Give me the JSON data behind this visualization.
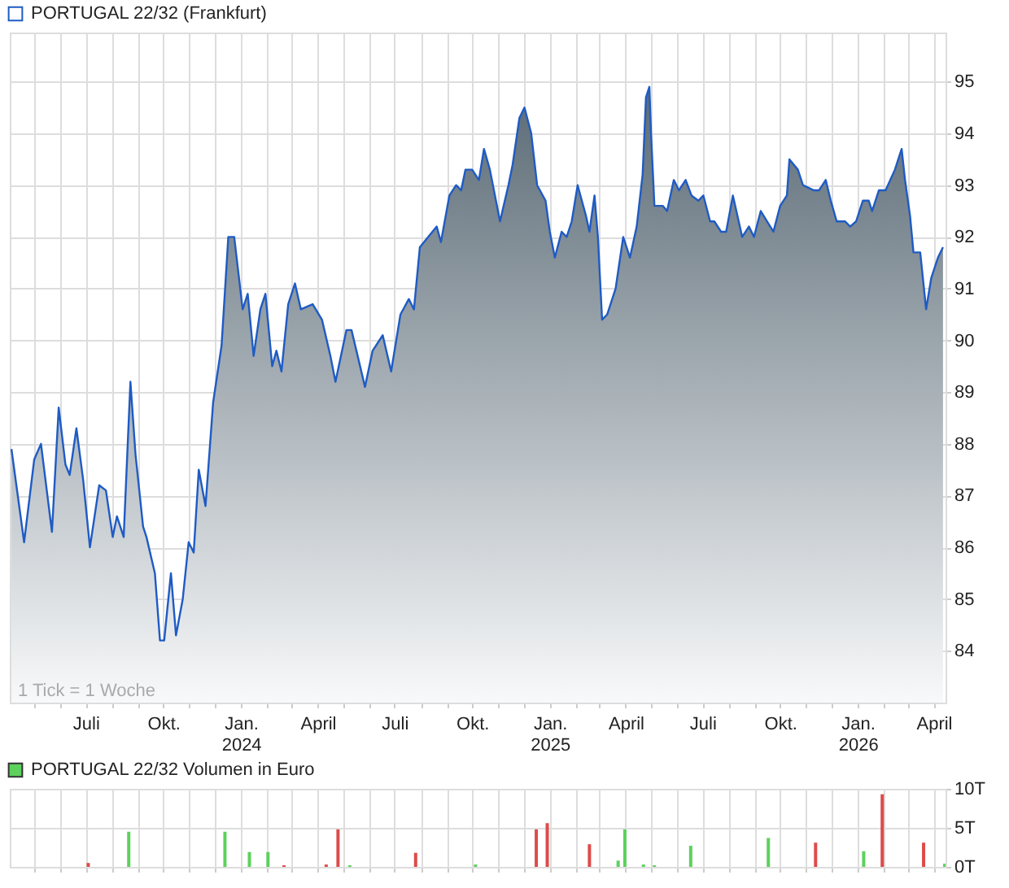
{
  "chart_data": [
    {
      "type": "area",
      "legend": "top left",
      "grid": true,
      "annotations": [
        "1 Tick = 1 Woche"
      ],
      "xlim": [
        "2023-04-02",
        "2026-04-15"
      ],
      "ylim": [
        83,
        95.95
      ],
      "yticks": [
        84,
        85,
        86,
        87,
        88,
        89,
        90,
        91,
        92,
        93,
        94,
        95
      ],
      "xticks": [
        {
          "value": "2023-05-01",
          "label": null
        },
        {
          "value": "2023-06-01",
          "label": null
        },
        {
          "value": "2023-07-01",
          "label": "Juli"
        },
        {
          "value": "2023-08-01",
          "label": null
        },
        {
          "value": "2023-09-01",
          "label": null
        },
        {
          "value": "2023-10-01",
          "label": "Okt."
        },
        {
          "value": "2023-11-01",
          "label": null
        },
        {
          "value": "2023-12-01",
          "label": null
        },
        {
          "value": "2024-01-01",
          "label": "Jan. 2024"
        },
        {
          "value": "2024-02-01",
          "label": null
        },
        {
          "value": "2024-03-01",
          "label": null
        },
        {
          "value": "2024-04-01",
          "label": "April"
        },
        {
          "value": "2024-05-01",
          "label": null
        },
        {
          "value": "2024-06-01",
          "label": null
        },
        {
          "value": "2024-07-01",
          "label": "Juli"
        },
        {
          "value": "2024-08-01",
          "label": null
        },
        {
          "value": "2024-09-01",
          "label": null
        },
        {
          "value": "2024-10-01",
          "label": "Okt."
        },
        {
          "value": "2024-11-01",
          "label": null
        },
        {
          "value": "2024-12-01",
          "label": null
        },
        {
          "value": "2025-01-01",
          "label": "Jan. 2025"
        },
        {
          "value": "2025-02-01",
          "label": null
        },
        {
          "value": "2025-03-01",
          "label": null
        },
        {
          "value": "2025-04-01",
          "label": "April"
        },
        {
          "value": "2025-05-01",
          "label": null
        },
        {
          "value": "2025-06-01",
          "label": null
        },
        {
          "value": "2025-07-01",
          "label": "Juli"
        },
        {
          "value": "2025-08-01",
          "label": null
        },
        {
          "value": "2025-09-01",
          "label": null
        },
        {
          "value": "2025-10-01",
          "label": "Okt."
        },
        {
          "value": "2025-11-01",
          "label": null
        },
        {
          "value": "2025-12-01",
          "label": null
        },
        {
          "value": "2026-01-01",
          "label": "Jan. 2026"
        },
        {
          "value": "2026-02-01",
          "label": null
        },
        {
          "value": "2026-03-01",
          "label": null
        },
        {
          "value": "2026-04-01",
          "label": "April"
        }
      ],
      "series": [
        {
          "name": "PORTUGAL 22/32 (Frankfurt)",
          "color": "#1f5bc4",
          "x": [
            "2023-04-04",
            "2023-04-19",
            "2023-05-01",
            "2023-05-09",
            "2023-05-22",
            "2023-05-30",
            "2023-06-07",
            "2023-06-12",
            "2023-06-20",
            "2023-06-28",
            "2023-07-06",
            "2023-07-17",
            "2023-07-25",
            "2023-08-02",
            "2023-08-07",
            "2023-08-15",
            "2023-08-23",
            "2023-08-29",
            "2023-09-07",
            "2023-09-11",
            "2023-09-21",
            "2023-09-27",
            "2023-10-02",
            "2023-10-10",
            "2023-10-16",
            "2023-10-24",
            "2023-10-31",
            "2023-11-06",
            "2023-11-12",
            "2023-11-20",
            "2023-11-29",
            "2023-12-09",
            "2023-12-17",
            "2023-12-24",
            "2024-01-03",
            "2024-01-09",
            "2024-01-16",
            "2024-01-24",
            "2024-01-30",
            "2024-02-07",
            "2024-02-12",
            "2024-02-18",
            "2024-02-26",
            "2024-03-05",
            "2024-03-12",
            "2024-03-26",
            "2024-04-06",
            "2024-04-16",
            "2024-04-22",
            "2024-05-05",
            "2024-05-11",
            "2024-05-27",
            "2024-06-05",
            "2024-06-17",
            "2024-06-27",
            "2024-07-08",
            "2024-07-18",
            "2024-07-24",
            "2024-07-31",
            "2024-08-10",
            "2024-08-20",
            "2024-08-25",
            "2024-09-04",
            "2024-09-12",
            "2024-09-18",
            "2024-09-23",
            "2024-10-01",
            "2024-10-09",
            "2024-10-15",
            "2024-10-22",
            "2024-11-03",
            "2024-11-13",
            "2024-11-18",
            "2024-11-26",
            "2024-12-02",
            "2024-12-10",
            "2024-12-17",
            "2024-12-27",
            "2025-01-01",
            "2025-01-07",
            "2025-01-15",
            "2025-01-21",
            "2025-01-27",
            "2025-02-03",
            "2025-02-13",
            "2025-02-17",
            "2025-02-23",
            "2025-02-27",
            "2025-03-04",
            "2025-03-10",
            "2025-03-20",
            "2025-03-29",
            "2025-04-06",
            "2025-04-14",
            "2025-04-21",
            "2025-04-25",
            "2025-04-29",
            "2025-05-01",
            "2025-05-05",
            "2025-05-15",
            "2025-05-20",
            "2025-05-28",
            "2025-06-03",
            "2025-06-11",
            "2025-06-18",
            "2025-06-26",
            "2025-07-02",
            "2025-07-10",
            "2025-07-15",
            "2025-07-23",
            "2025-07-29",
            "2025-08-06",
            "2025-08-17",
            "2025-08-25",
            "2025-08-31",
            "2025-09-08",
            "2025-09-23",
            "2025-10-01",
            "2025-10-09",
            "2025-10-12",
            "2025-10-22",
            "2025-10-28",
            "2025-11-10",
            "2025-11-16",
            "2025-11-24",
            "2025-11-30",
            "2025-12-07",
            "2025-12-17",
            "2025-12-23",
            "2025-12-30",
            "2026-01-07",
            "2026-01-14",
            "2026-01-18",
            "2026-01-26",
            "2026-02-03",
            "2026-02-14",
            "2026-02-22",
            "2026-02-26",
            "2026-03-04",
            "2026-03-08",
            "2026-03-16",
            "2026-03-23",
            "2026-03-29",
            "2026-04-06",
            "2026-04-12"
          ],
          "values": [
            87.9,
            86.1,
            87.7,
            88.0,
            86.3,
            88.7,
            87.6,
            87.4,
            88.3,
            87.3,
            86.0,
            87.2,
            87.1,
            86.2,
            86.6,
            86.2,
            89.2,
            87.8,
            86.4,
            86.2,
            85.5,
            84.2,
            84.2,
            85.5,
            84.3,
            85.0,
            86.1,
            85.9,
            87.5,
            86.8,
            88.8,
            89.9,
            92.0,
            92.0,
            90.6,
            90.9,
            89.7,
            90.6,
            90.9,
            89.5,
            89.8,
            89.4,
            90.7,
            91.1,
            90.6,
            90.7,
            90.4,
            89.7,
            89.2,
            90.2,
            90.2,
            89.1,
            89.8,
            90.1,
            89.4,
            90.5,
            90.8,
            90.6,
            91.8,
            92.0,
            92.2,
            91.9,
            92.8,
            93.0,
            92.9,
            93.3,
            93.3,
            93.1,
            93.7,
            93.3,
            92.3,
            93.0,
            93.4,
            94.3,
            94.5,
            94.0,
            93.0,
            92.7,
            92.1,
            91.6,
            92.1,
            92.0,
            92.3,
            93.0,
            92.4,
            92.1,
            92.8,
            92.0,
            90.4,
            90.5,
            91.0,
            92.0,
            91.6,
            92.2,
            93.2,
            94.7,
            94.9,
            94.0,
            92.6,
            92.6,
            92.5,
            93.1,
            92.9,
            93.1,
            92.8,
            92.7,
            92.8,
            92.3,
            92.3,
            92.1,
            92.1,
            92.8,
            92.0,
            92.2,
            92.0,
            92.5,
            92.1,
            92.6,
            92.8,
            93.5,
            93.3,
            93.0,
            92.9,
            92.9,
            93.1,
            92.7,
            92.3,
            92.3,
            92.2,
            92.3,
            92.7,
            92.7,
            92.5,
            92.9,
            92.9,
            93.3,
            93.7,
            93.1,
            92.4,
            91.7,
            91.7,
            90.6,
            91.2,
            91.6,
            91.8
          ]
        }
      ]
    },
    {
      "type": "bar",
      "legend": "top left",
      "grid": true,
      "tick_labels": "y",
      "xlim": [
        "2023-04-02",
        "2026-04-15"
      ],
      "ylim": [
        0,
        10
      ],
      "yticks": [
        {
          "value": 0,
          "label": "0T"
        },
        {
          "value": 5,
          "label": "5T"
        },
        {
          "value": 10,
          "label": "10T"
        }
      ],
      "xticks": [
        {
          "value": "2023-05-01",
          "label": null
        },
        {
          "value": "2023-06-01",
          "label": null
        },
        {
          "value": "2023-07-01",
          "label": null
        },
        {
          "value": "2023-08-01",
          "label": null
        },
        {
          "value": "2023-09-01",
          "label": null
        },
        {
          "value": "2023-10-01",
          "label": null
        },
        {
          "value": "2023-11-01",
          "label": null
        },
        {
          "value": "2023-12-01",
          "label": null
        },
        {
          "value": "2024-01-01",
          "label": null
        },
        {
          "value": "2024-02-01",
          "label": null
        },
        {
          "value": "2024-03-01",
          "label": null
        },
        {
          "value": "2024-04-01",
          "label": null
        },
        {
          "value": "2024-05-01",
          "label": null
        },
        {
          "value": "2024-06-01",
          "label": null
        },
        {
          "value": "2024-07-01",
          "label": null
        },
        {
          "value": "2024-08-01",
          "label": null
        },
        {
          "value": "2024-09-01",
          "label": null
        },
        {
          "value": "2024-10-01",
          "label": null
        },
        {
          "value": "2024-11-01",
          "label": null
        },
        {
          "value": "2024-12-01",
          "label": null
        },
        {
          "value": "2025-01-01",
          "label": null
        },
        {
          "value": "2025-02-01",
          "label": null
        },
        {
          "value": "2025-03-01",
          "label": null
        },
        {
          "value": "2025-04-01",
          "label": null
        },
        {
          "value": "2025-05-01",
          "label": null
        },
        {
          "value": "2025-06-01",
          "label": null
        },
        {
          "value": "2025-07-01",
          "label": null
        },
        {
          "value": "2025-08-01",
          "label": null
        },
        {
          "value": "2025-09-01",
          "label": null
        },
        {
          "value": "2025-10-01",
          "label": null
        },
        {
          "value": "2025-11-01",
          "label": null
        },
        {
          "value": "2025-12-01",
          "label": null
        },
        {
          "value": "2026-01-01",
          "label": null
        },
        {
          "value": "2026-02-01",
          "label": null
        },
        {
          "value": "2026-03-01",
          "label": null
        },
        {
          "value": "2026-04-01",
          "label": null
        }
      ],
      "series": [
        {
          "name": "PORTUGAL 22/32 Volumen in Euro",
          "color": "#5cd15c",
          "x": [
            "2023-07-04",
            "2023-08-21",
            "2023-12-13",
            "2024-01-11",
            "2024-02-02",
            "2024-02-21",
            "2024-04-11",
            "2024-04-25",
            "2024-05-09",
            "2024-07-26",
            "2024-10-05",
            "2024-12-16",
            "2024-12-29",
            "2025-02-17",
            "2025-03-23",
            "2025-03-31",
            "2025-04-22",
            "2025-05-05",
            "2025-06-17",
            "2025-09-17",
            "2025-11-12",
            "2026-01-08",
            "2026-01-30",
            "2026-03-20",
            "2026-04-14"
          ],
          "values": [
            0.5,
            4.5,
            4.5,
            1.9,
            1.9,
            0.2,
            0.3,
            4.8,
            0.2,
            1.8,
            0.3,
            4.8,
            5.6,
            2.9,
            0.8,
            4.8,
            0.3,
            0.2,
            2.7,
            3.7,
            3.1,
            2.0,
            9.3,
            3.1,
            0.4
          ],
          "colors": [
            "#dd4b4b",
            "#5cd15c",
            "#5cd15c",
            "#5cd15c",
            "#5cd15c",
            "#dd4b4b",
            "#dd4b4b",
            "#dd4b4b",
            "#5cd15c",
            "#dd4b4b",
            "#5cd15c",
            "#dd4b4b",
            "#dd4b4b",
            "#dd4b4b",
            "#5cd15c",
            "#5cd15c",
            "#5cd15c",
            "#5cd15c",
            "#5cd15c",
            "#5cd15c",
            "#dd4b4b",
            "#5cd15c",
            "#dd4b4b",
            "#dd4b4b",
            "#5cd15c"
          ]
        }
      ]
    }
  ]
}
